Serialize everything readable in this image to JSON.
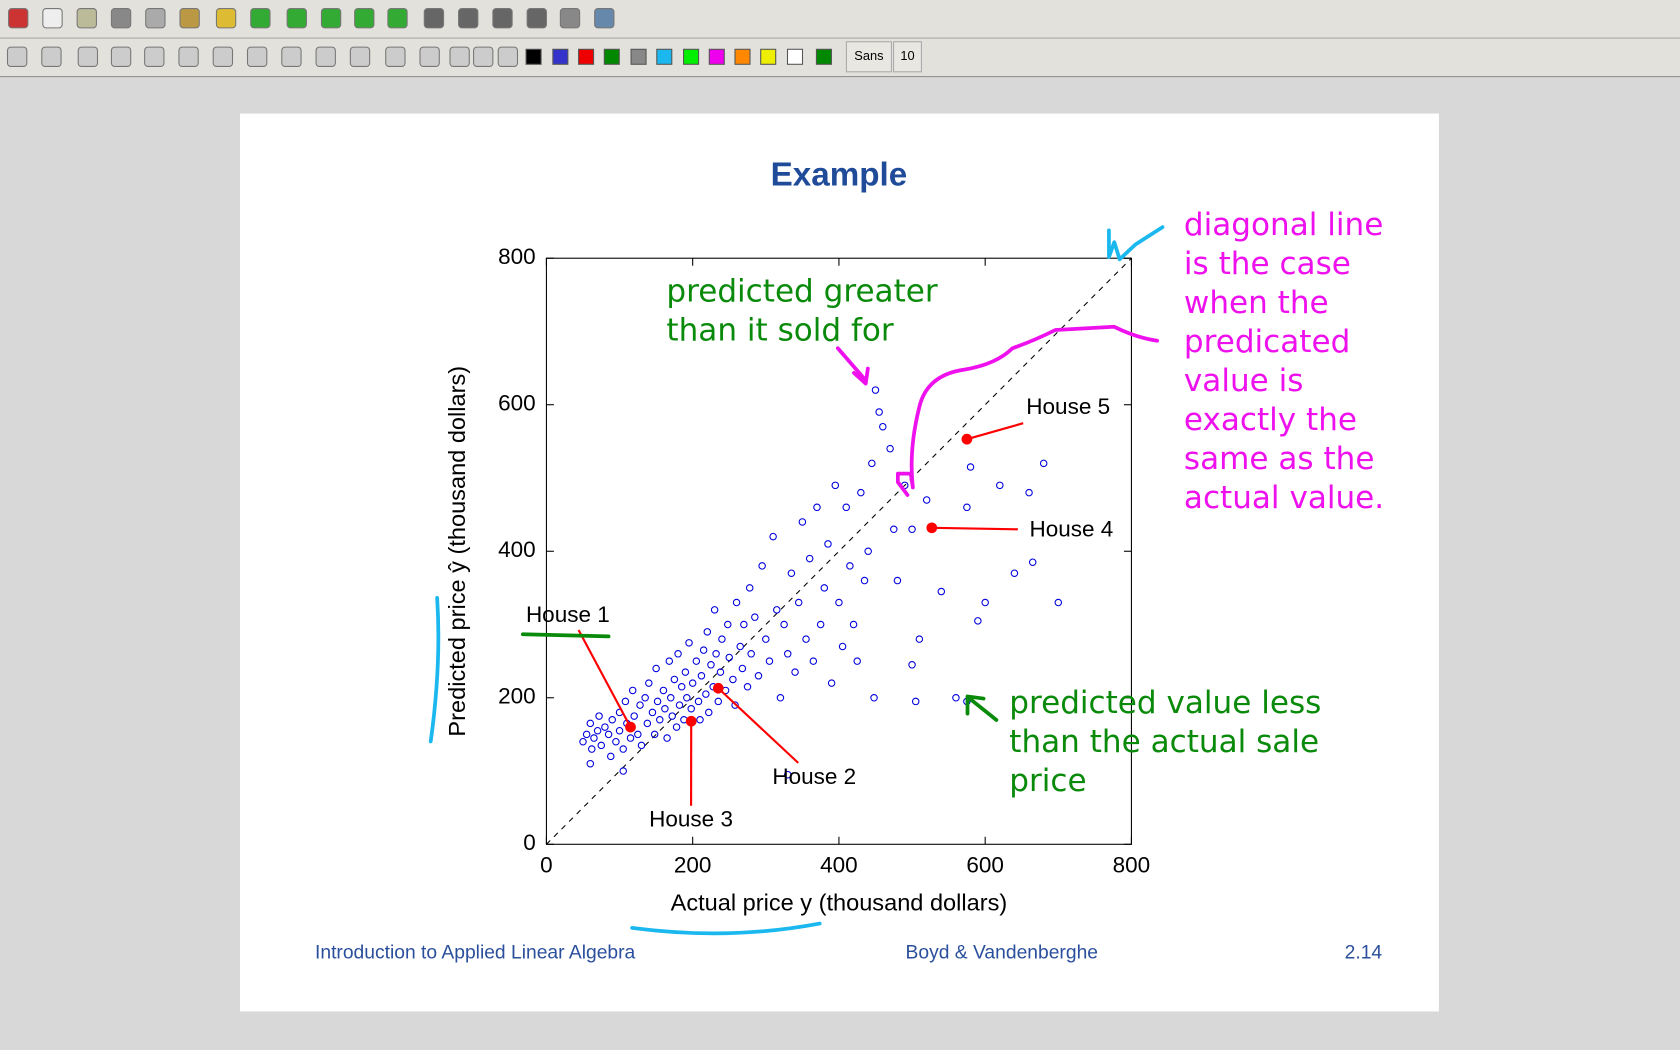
{
  "toolbar": {
    "font_name": "Sans",
    "font_size": "10"
  },
  "slide": {
    "title": "Example",
    "chart_data": {
      "type": "scatter",
      "xlabel": "Actual price y (thousand dollars)",
      "ylabel": "Predicted price ŷ (thousand dollars)",
      "xlim": [
        0,
        800
      ],
      "ylim": [
        0,
        800
      ],
      "xticks": [
        0,
        200,
        400,
        600,
        800
      ],
      "yticks": [
        0,
        200,
        400,
        600,
        800
      ],
      "color": "#0000dd",
      "x": [
        50,
        55,
        60,
        62,
        65,
        70,
        72,
        75,
        80,
        85,
        88,
        90,
        95,
        100,
        100,
        105,
        108,
        110,
        115,
        118,
        120,
        125,
        128,
        130,
        135,
        138,
        140,
        145,
        148,
        150,
        152,
        155,
        160,
        162,
        165,
        168,
        170,
        172,
        175,
        178,
        180,
        182,
        185,
        188,
        190,
        192,
        195,
        198,
        200,
        205,
        208,
        210,
        212,
        215,
        218,
        220,
        222,
        225,
        228,
        230,
        232,
        235,
        238,
        240,
        245,
        248,
        250,
        255,
        258,
        260,
        265,
        268,
        270,
        275,
        278,
        280,
        285,
        290,
        295,
        300,
        305,
        310,
        315,
        320,
        325,
        330,
        335,
        340,
        345,
        350,
        355,
        360,
        365,
        370,
        375,
        380,
        385,
        390,
        395,
        400,
        405,
        410,
        415,
        420,
        425,
        430,
        435,
        440,
        445,
        448,
        450,
        455,
        460,
        470,
        475,
        480,
        490,
        500,
        505,
        510,
        520,
        540,
        560,
        575,
        580,
        590,
        600,
        620,
        640,
        660,
        665,
        680,
        700,
        575,
        500,
        330,
        105,
        60
      ],
      "y": [
        140,
        150,
        165,
        130,
        145,
        155,
        175,
        135,
        160,
        150,
        120,
        170,
        140,
        180,
        155,
        130,
        195,
        165,
        145,
        210,
        175,
        150,
        190,
        135,
        200,
        165,
        220,
        180,
        150,
        240,
        195,
        170,
        210,
        185,
        145,
        250,
        200,
        175,
        225,
        160,
        260,
        190,
        215,
        170,
        235,
        200,
        275,
        185,
        220,
        250,
        195,
        170,
        230,
        265,
        205,
        290,
        180,
        245,
        215,
        320,
        260,
        195,
        235,
        280,
        210,
        300,
        255,
        225,
        190,
        330,
        270,
        240,
        300,
        215,
        350,
        260,
        310,
        230,
        380,
        280,
        250,
        420,
        320,
        200,
        300,
        260,
        370,
        235,
        330,
        440,
        280,
        390,
        250,
        460,
        300,
        350,
        410,
        220,
        490,
        330,
        270,
        460,
        380,
        300,
        250,
        480,
        360,
        400,
        520,
        200,
        620,
        590,
        570,
        540,
        430,
        360,
        490,
        430,
        195,
        280,
        470,
        345,
        200,
        460,
        515,
        305,
        330,
        490,
        370,
        480,
        385,
        520,
        330,
        195,
        245,
        95,
        100,
        110
      ],
      "highlight": {
        "color": "#ff0000",
        "points": [
          {
            "label": "House 1",
            "x": 115,
            "y": 160
          },
          {
            "label": "House 2",
            "x": 235,
            "y": 213
          },
          {
            "label": "House 3",
            "x": 198,
            "y": 168
          },
          {
            "label": "House 4",
            "x": 527,
            "y": 432
          },
          {
            "label": "House 5",
            "x": 575,
            "y": 553
          }
        ]
      }
    },
    "annotations": {
      "diagonal": [
        "diagonal line",
        "is the case",
        "when the",
        "predicated",
        "value is",
        "exactly the",
        "same as the",
        "actual value."
      ],
      "greater": [
        "predicted greater",
        "than it sold for"
      ],
      "less": [
        "predicted value less",
        "than the actual sale",
        "price"
      ]
    },
    "footer": {
      "left": "Introduction to Applied Linear Algebra",
      "center": "Boyd & Vandenberghe",
      "right": "2.14"
    }
  }
}
